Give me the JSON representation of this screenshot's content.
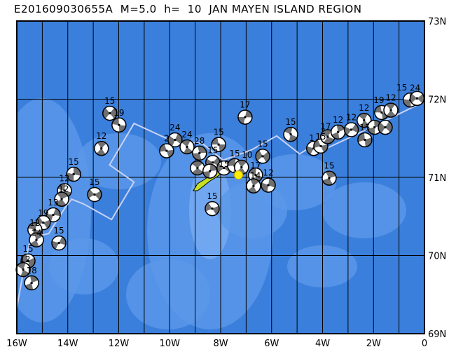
{
  "title": "E201609030655A  M=5.0  h=  10  JAN MAYEN ISLAND REGION",
  "map": {
    "lon_range": [
      -16,
      0
    ],
    "lat_range": [
      69,
      73
    ],
    "grid_step_lon": 1,
    "grid_step_lat": 1,
    "lon_labels": [
      "16W",
      "14W",
      "12W",
      "10W",
      "8W",
      "6W",
      "4W",
      "2W",
      "0"
    ],
    "lat_labels": [
      "73N",
      "72N",
      "71N",
      "70N",
      "69N"
    ],
    "colors": {
      "ocean": "#3b7fdc",
      "shallow": "#5b98ea",
      "shallower": "#78acf2",
      "plate_boundary": "#c8d2f5",
      "land": "#c6e020",
      "epicenter": "#ffee00",
      "mechanism": "#707070"
    },
    "plate_boundary": [
      [
        -16,
        69.33
      ],
      [
        -15.67,
        69.93
      ],
      [
        -15.45,
        70.23
      ],
      [
        -14.75,
        70.28
      ],
      [
        -14.07,
        70.63
      ],
      [
        -13.85,
        70.72
      ],
      [
        -13.38,
        70.66
      ],
      [
        -12.28,
        70.46
      ],
      [
        -11.4,
        70.94
      ],
      [
        -12.36,
        71.16
      ],
      [
        -11.4,
        71.69
      ],
      [
        -10.0,
        71.48
      ],
      [
        -8.7,
        71.43
      ],
      [
        -7.9,
        71.22
      ],
      [
        -6.8,
        71.35
      ],
      [
        -5.8,
        71.53
      ],
      [
        -4.9,
        71.3
      ],
      [
        -4.5,
        71.38
      ],
      [
        -3.85,
        71.37
      ],
      [
        -3.0,
        71.5
      ],
      [
        -1.07,
        71.8
      ],
      [
        -0.07,
        71.96
      ]
    ],
    "epicenter": {
      "lon": -7.3,
      "lat": 71.03
    },
    "events": [
      {
        "lon": -12.35,
        "lat": 71.82,
        "depth": "15"
      },
      {
        "lon": -11.99,
        "lat": 71.67,
        "depth": "19"
      },
      {
        "lon": -12.68,
        "lat": 71.37,
        "depth": "12"
      },
      {
        "lon": -13.77,
        "lat": 71.04,
        "depth": "15"
      },
      {
        "lon": -12.95,
        "lat": 70.78,
        "depth": "15"
      },
      {
        "lon": -14.13,
        "lat": 70.83,
        "depth": "12"
      },
      {
        "lon": -14.24,
        "lat": 70.72,
        "depth": "12"
      },
      {
        "lon": -14.57,
        "lat": 70.52,
        "depth": "13"
      },
      {
        "lon": -14.96,
        "lat": 70.42,
        "depth": "19"
      },
      {
        "lon": -15.29,
        "lat": 70.33,
        "depth": "12"
      },
      {
        "lon": -15.23,
        "lat": 70.2,
        "depth": "14"
      },
      {
        "lon": -14.35,
        "lat": 70.16,
        "depth": "15"
      },
      {
        "lon": -15.56,
        "lat": 69.93,
        "depth": "15"
      },
      {
        "lon": -15.75,
        "lat": 69.82,
        "depth": "12"
      },
      {
        "lon": -15.42,
        "lat": 69.65,
        "depth": "18"
      },
      {
        "lon": -9.79,
        "lat": 71.48,
        "depth": "24"
      },
      {
        "lon": -10.12,
        "lat": 71.34,
        "depth": "2"
      },
      {
        "lon": -9.32,
        "lat": 71.39,
        "depth": "24"
      },
      {
        "lon": -8.83,
        "lat": 71.31,
        "depth": "28"
      },
      {
        "lon": -8.31,
        "lat": 71.19,
        "depth": "15"
      },
      {
        "lon": -8.08,
        "lat": 71.42,
        "depth": "15"
      },
      {
        "lon": -8.91,
        "lat": 71.12,
        "depth": ""
      },
      {
        "lon": -8.42,
        "lat": 71.08,
        "depth": ""
      },
      {
        "lon": -7.87,
        "lat": 71.12,
        "depth": "15"
      },
      {
        "lon": -7.45,
        "lat": 71.15,
        "depth": "15"
      },
      {
        "lon": -7.18,
        "lat": 71.13,
        "depth": "10"
      },
      {
        "lon": -7.04,
        "lat": 71.77,
        "depth": "17"
      },
      {
        "lon": -6.35,
        "lat": 71.27,
        "depth": "15"
      },
      {
        "lon": -6.63,
        "lat": 71.03,
        "depth": "17"
      },
      {
        "lon": -6.71,
        "lat": 70.89,
        "depth": "14"
      },
      {
        "lon": -6.13,
        "lat": 70.9,
        "depth": "12"
      },
      {
        "lon": -8.33,
        "lat": 70.6,
        "depth": "15"
      },
      {
        "lon": -5.25,
        "lat": 71.55,
        "depth": "15"
      },
      {
        "lon": -3.74,
        "lat": 70.99,
        "depth": "15"
      },
      {
        "lon": -4.35,
        "lat": 71.37,
        "depth": "1"
      },
      {
        "lon": -4.07,
        "lat": 71.4,
        "depth": "15"
      },
      {
        "lon": -3.8,
        "lat": 71.52,
        "depth": "17"
      },
      {
        "lon": -3.39,
        "lat": 71.58,
        "depth": "12"
      },
      {
        "lon": -2.87,
        "lat": 71.61,
        "depth": "12"
      },
      {
        "lon": -2.34,
        "lat": 71.48,
        "depth": "15"
      },
      {
        "lon": -2.37,
        "lat": 71.73,
        "depth": "12"
      },
      {
        "lon": -1.96,
        "lat": 71.64,
        "depth": ""
      },
      {
        "lon": -1.54,
        "lat": 71.64,
        "depth": ""
      },
      {
        "lon": -1.68,
        "lat": 71.83,
        "depth": "19"
      },
      {
        "lon": -1.32,
        "lat": 71.86,
        "depth": "12"
      },
      {
        "lon": -0.56,
        "lat": 71.99,
        "depth": "15"
      },
      {
        "lon": -0.29,
        "lat": 72.01,
        "depth": "24"
      }
    ]
  }
}
